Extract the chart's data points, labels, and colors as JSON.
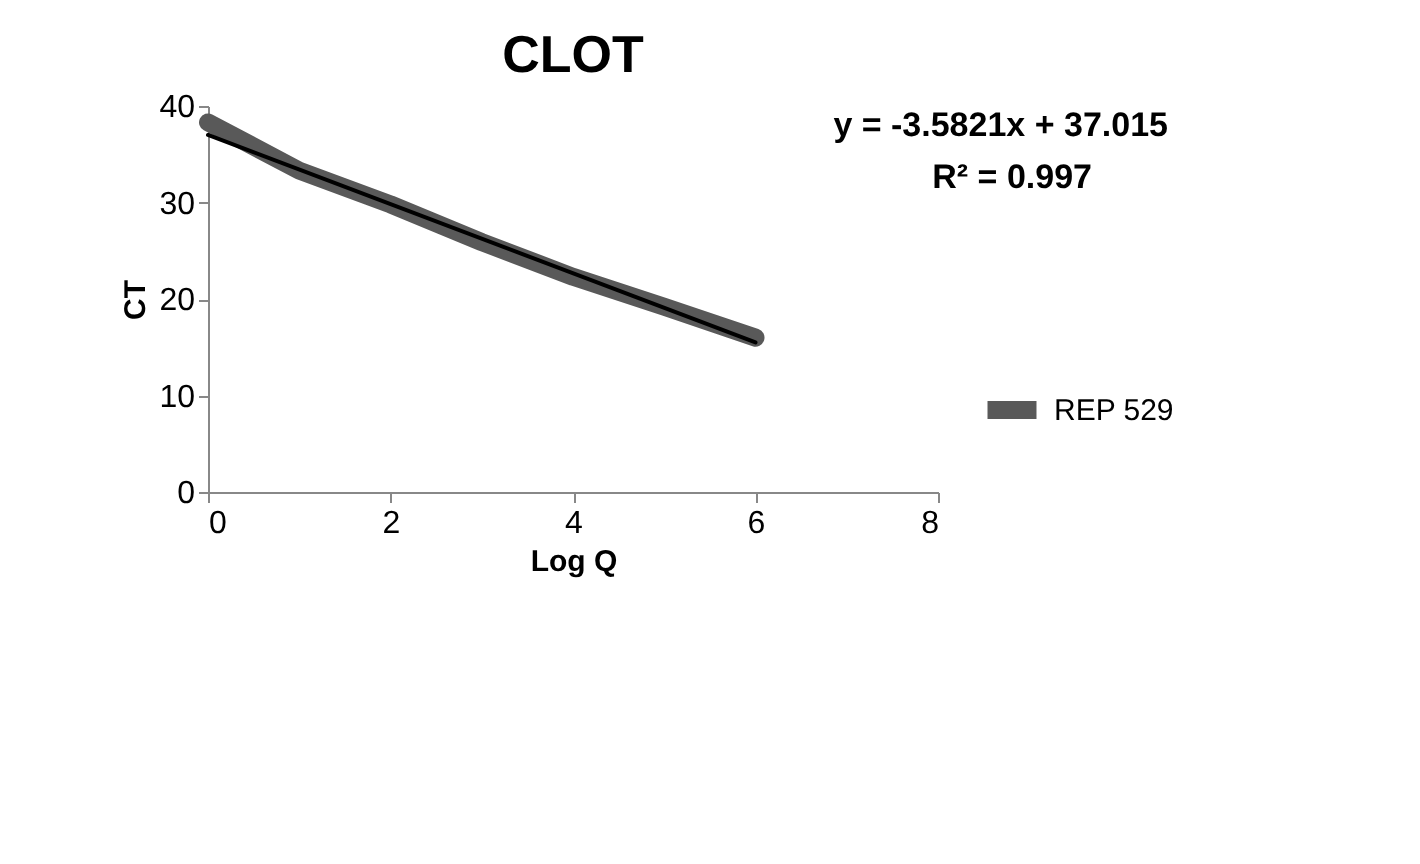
{
  "chart_data": {
    "type": "line",
    "title": "CLOT",
    "xlabel": "Log Q",
    "ylabel": "CT",
    "x": [
      0,
      1,
      2,
      3,
      4,
      5,
      6
    ],
    "series": [
      {
        "name": "REP 529",
        "color": "#595959",
        "values": [
          38.3,
          33.3,
          29.8,
          25.9,
          22.3,
          19.2,
          16.0
        ]
      },
      {
        "type": "line",
        "color": "#000000",
        "x": [
          0,
          6
        ],
        "values": [
          37.0,
          15.5
        ]
      }
    ],
    "annotations": [
      "y = -3.5821x + 37.015",
      "R² = 0.997"
    ],
    "xlim": [
      0,
      8
    ],
    "xticks": [
      0,
      2,
      4,
      6,
      8
    ],
    "ylim": [
      0,
      40
    ],
    "yticks": [
      0,
      10,
      20,
      30,
      40
    ],
    "grid": false,
    "legend": "right",
    "marker": "none",
    "line_style": "solid"
  }
}
